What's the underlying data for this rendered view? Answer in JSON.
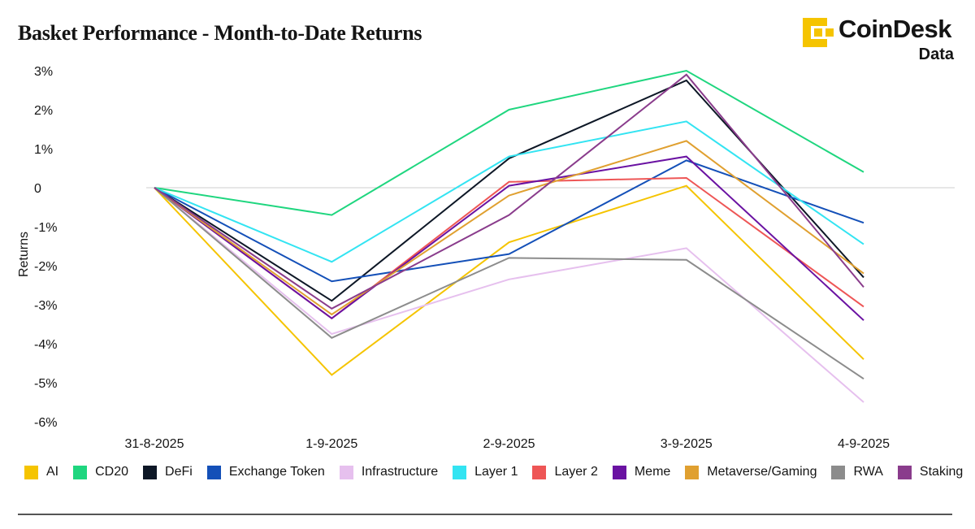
{
  "header": {
    "title": "Basket Performance - Month-to-Date Returns"
  },
  "logo": {
    "brand": "CoinDesk",
    "sub": "Data",
    "color": "#F5C400"
  },
  "chart_data": {
    "type": "line",
    "title": "Basket Performance - Month-to-Date Returns",
    "xlabel": "",
    "ylabel": "Returns",
    "categories": [
      "31-8-2025",
      "1-9-2025",
      "2-9-2025",
      "3-9-2025",
      "4-9-2025"
    ],
    "yticks": [
      3,
      2,
      1,
      0,
      -1,
      -2,
      -3,
      -4,
      -5,
      -6
    ],
    "ytick_labels": [
      "3%",
      "2%",
      "1%",
      "0",
      "-1%",
      "-2%",
      "-3%",
      "-4%",
      "-5%",
      "-6%"
    ],
    "ylim": [
      -6,
      3
    ],
    "zero_line": true,
    "legend_position": "bottom",
    "series": [
      {
        "name": "AI",
        "color": "#F5C400",
        "values": [
          0,
          -4.8,
          -1.4,
          0.05,
          -4.4
        ]
      },
      {
        "name": "CD20",
        "color": "#1FD67F",
        "values": [
          0,
          -0.7,
          2.0,
          3.0,
          0.4
        ]
      },
      {
        "name": "DeFi",
        "color": "#0D1726",
        "values": [
          0,
          -2.9,
          0.75,
          2.75,
          -2.3
        ]
      },
      {
        "name": "Exchange Token",
        "color": "#1450B8",
        "values": [
          0,
          -2.4,
          -1.7,
          0.7,
          -0.9
        ]
      },
      {
        "name": "Infrastructure",
        "color": "#E6C0EE",
        "values": [
          0,
          -3.75,
          -2.35,
          -1.55,
          -5.5
        ]
      },
      {
        "name": "Layer 1",
        "color": "#33E4F2",
        "values": [
          0,
          -1.9,
          0.8,
          1.7,
          -1.45
        ]
      },
      {
        "name": "Layer 2",
        "color": "#EE5656",
        "values": [
          0,
          -3.35,
          0.15,
          0.25,
          -3.05
        ]
      },
      {
        "name": "Meme",
        "color": "#6A12A2",
        "values": [
          0,
          -3.35,
          0.05,
          0.8,
          -3.4
        ]
      },
      {
        "name": "Metaverse/Gaming",
        "color": "#E0A030",
        "values": [
          0,
          -3.25,
          -0.2,
          1.2,
          -2.2
        ]
      },
      {
        "name": "RWA",
        "color": "#8C8C8C",
        "values": [
          0,
          -3.85,
          -1.8,
          -1.85,
          -4.9
        ]
      },
      {
        "name": "Staking",
        "color": "#8A3C8C",
        "values": [
          0,
          -3.1,
          -0.7,
          2.9,
          -2.55
        ]
      }
    ]
  }
}
